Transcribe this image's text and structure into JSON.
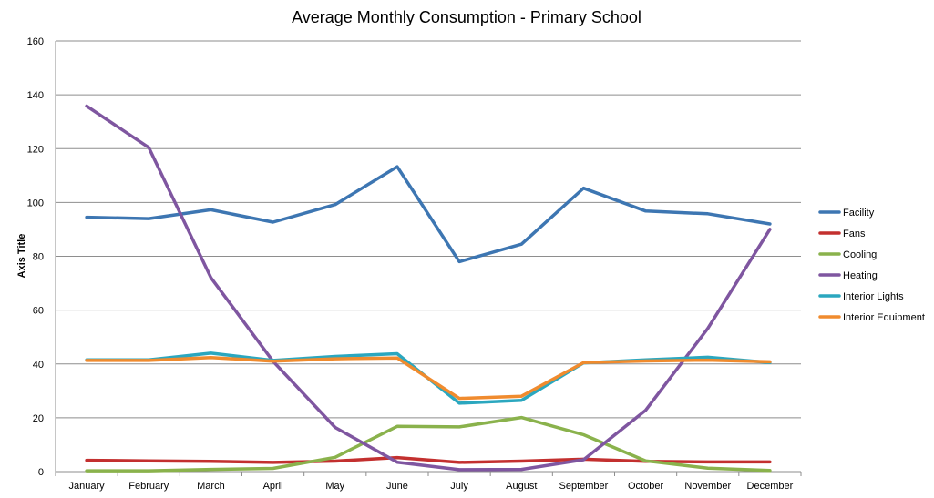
{
  "chart_data": {
    "type": "line",
    "title": "Average Monthly Consumption - Primary School",
    "xlabel": "",
    "ylabel": "Axis Title",
    "ylim": [
      0,
      160
    ],
    "yticks": [
      0,
      20,
      40,
      60,
      80,
      100,
      120,
      140,
      160
    ],
    "grid": true,
    "legend": "right",
    "categories": [
      "January",
      "February",
      "March",
      "April",
      "May",
      "June",
      "July",
      "August",
      "September",
      "October",
      "November",
      "December"
    ],
    "series": [
      {
        "name": "Facility",
        "color": "#3d76b2",
        "values": [
          94.5,
          94,
          97.3,
          92.7,
          99.2,
          113.3,
          78,
          84.5,
          105.3,
          96.8,
          95.8,
          92
        ]
      },
      {
        "name": "Fans",
        "color": "#c3302f",
        "values": [
          4.2,
          4,
          3.8,
          3.4,
          3.9,
          5.2,
          3.4,
          3.9,
          4.6,
          3.8,
          3.6,
          3.6
        ]
      },
      {
        "name": "Cooling",
        "color": "#8ab24c",
        "values": [
          0.3,
          0.3,
          0.8,
          1.2,
          5.3,
          16.8,
          16.6,
          20.1,
          13.7,
          4,
          1.3,
          0.4
        ]
      },
      {
        "name": "Heating",
        "color": "#7f56a0",
        "values": [
          135.8,
          120.4,
          72.1,
          41,
          16.4,
          3.5,
          0.7,
          0.8,
          4.4,
          22.8,
          53.2,
          90
        ]
      },
      {
        "name": "Interior Lights",
        "color": "#2ba7bf",
        "values": [
          41.5,
          41.5,
          44,
          41.3,
          42.8,
          43.8,
          25.4,
          26.5,
          40.4,
          41.5,
          42.5,
          40.5
        ]
      },
      {
        "name": "Interior Equipment",
        "color": "#f08b2e",
        "values": [
          41.3,
          41.3,
          42.4,
          41,
          41.9,
          42.2,
          27.2,
          28,
          40.5,
          41.1,
          41.4,
          40.8
        ]
      }
    ]
  }
}
